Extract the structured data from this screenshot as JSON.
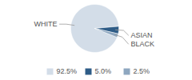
{
  "chart_data": {
    "type": "pie",
    "categories": [
      "WHITE",
      "ASIAN",
      "BLACK"
    ],
    "values": [
      92.5,
      5.0,
      2.5
    ],
    "value_labels": [
      "92.5%",
      "5.0%",
      "2.5%"
    ],
    "colors": [
      "#d3dde8",
      "#2e5c87",
      "#8ea7c0"
    ],
    "legend": "bottom"
  }
}
